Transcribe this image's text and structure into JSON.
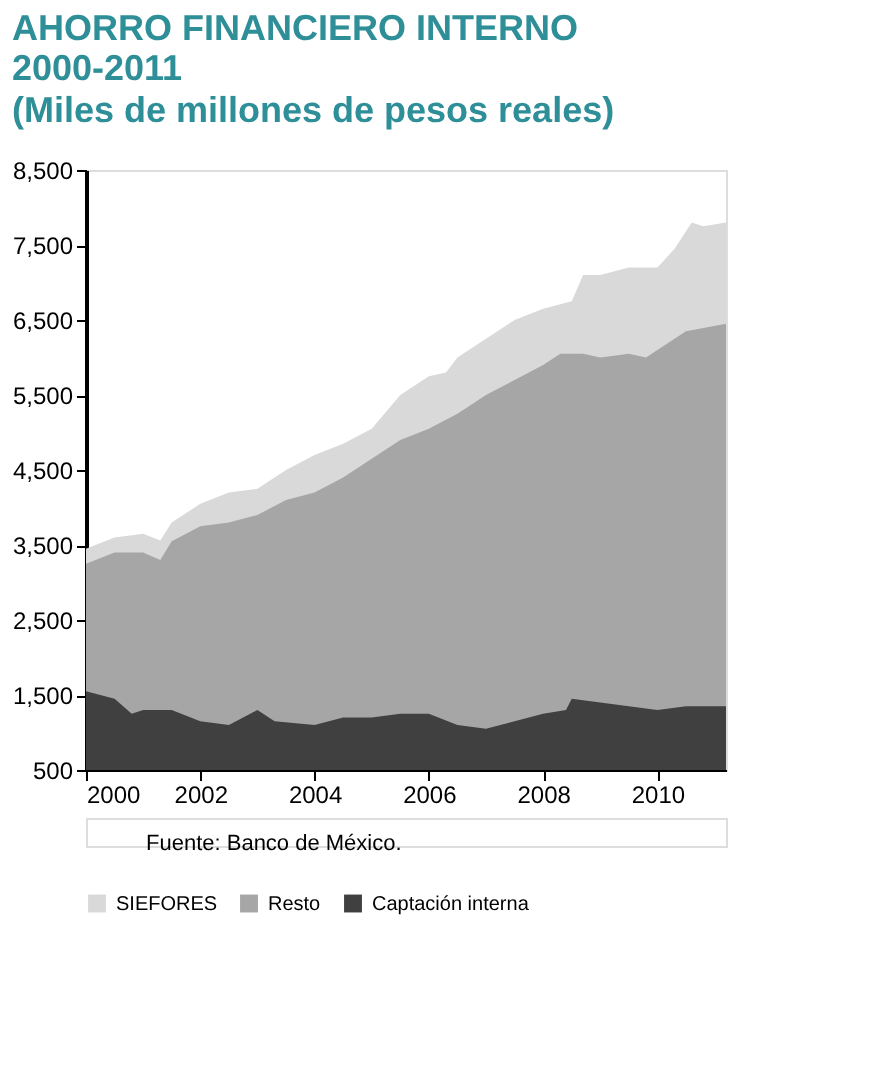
{
  "chart_data": {
    "type": "area",
    "title": "AHORRO FINANCIERO INTERNO\n2000-2011",
    "subtitle": "(Miles de millones de pesos reales)",
    "annotations": [
      "Fuente: Banco de México."
    ],
    "ylim": [
      500,
      8500
    ],
    "yticks": [
      {
        "value": 500,
        "label": "500"
      },
      {
        "value": 1500,
        "label": "1,500"
      },
      {
        "value": 2500,
        "label": "2,500"
      },
      {
        "value": 3500,
        "label": "3,500"
      },
      {
        "value": 4500,
        "label": "4,500"
      },
      {
        "value": 5500,
        "label": "5,500"
      },
      {
        "value": 6500,
        "label": "6,500"
      },
      {
        "value": 7500,
        "label": "7,500"
      },
      {
        "value": 8500,
        "label": "8,500"
      }
    ],
    "xlim": [
      2000,
      2011.2
    ],
    "xticks": [
      2000,
      2002,
      2004,
      2006,
      2008,
      2010
    ],
    "grid": false,
    "legend": "bottom",
    "series": [
      {
        "name": "SIEFORES",
        "color": "#d9d9d9",
        "x": [
          2000,
          2000.5,
          2001,
          2001.3,
          2001.5,
          2002,
          2002.5,
          2003,
          2003.5,
          2004,
          2004.5,
          2005,
          2005.5,
          2006,
          2006.3,
          2006.5,
          2007,
          2007.5,
          2008,
          2008.5,
          2008.7,
          2009,
          2009.5,
          2010,
          2010.3,
          2010.6,
          2010.8,
          2011.2
        ],
        "values": [
          3450,
          3600,
          3650,
          3560,
          3800,
          4050,
          4200,
          4250,
          4500,
          4700,
          4850,
          5050,
          5500,
          5750,
          5800,
          6000,
          6250,
          6500,
          6650,
          6750,
          7100,
          7100,
          7200,
          7200,
          7450,
          7800,
          7750,
          7800
        ]
      },
      {
        "name": "Resto",
        "color": "#a6a6a6",
        "x": [
          2000,
          2000.5,
          2001,
          2001.3,
          2001.5,
          2002,
          2002.5,
          2003,
          2003.5,
          2004,
          2004.5,
          2005,
          2005.5,
          2006,
          2006.5,
          2007,
          2007.5,
          2008,
          2008.3,
          2008.7,
          2009,
          2009.5,
          2009.8,
          2010,
          2010.5,
          2011.2
        ],
        "values": [
          3250,
          3400,
          3400,
          3300,
          3550,
          3750,
          3800,
          3900,
          4100,
          4200,
          4400,
          4650,
          4900,
          5050,
          5250,
          5500,
          5700,
          5900,
          6050,
          6050,
          6000,
          6050,
          6000,
          6100,
          6350,
          6450
        ]
      },
      {
        "name": "Captación interna",
        "color": "#404040",
        "x": [
          2000,
          2000.5,
          2000.8,
          2001,
          2001.5,
          2002,
          2002.5,
          2003,
          2003.3,
          2004,
          2004.5,
          2005,
          2005.5,
          2006,
          2006.5,
          2007,
          2007.5,
          2008,
          2008.4,
          2008.5,
          2009,
          2009.5,
          2010,
          2010.5,
          2011.2
        ],
        "values": [
          1550,
          1450,
          1250,
          1300,
          1300,
          1150,
          1100,
          1300,
          1150,
          1100,
          1200,
          1200,
          1250,
          1250,
          1100,
          1050,
          1150,
          1250,
          1300,
          1450,
          1400,
          1350,
          1300,
          1350,
          1350
        ]
      }
    ]
  }
}
